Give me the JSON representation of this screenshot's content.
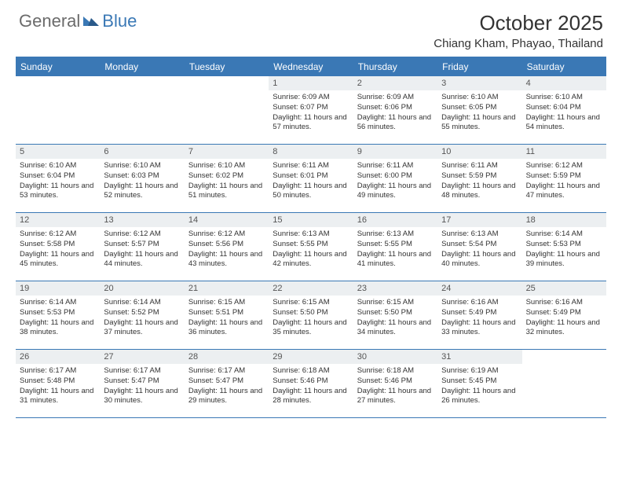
{
  "logo": {
    "general": "General",
    "blue": "Blue"
  },
  "title": {
    "month": "October 2025",
    "location": "Chiang Kham, Phayao, Thailand"
  },
  "colors": {
    "header_bg": "#3a78b5",
    "date_bg": "#eceff1",
    "text": "#333333",
    "logo_gray": "#6b6b6b"
  },
  "day_names": [
    "Sunday",
    "Monday",
    "Tuesday",
    "Wednesday",
    "Thursday",
    "Friday",
    "Saturday"
  ],
  "weeks": [
    [
      {
        "date": "",
        "sunrise": "",
        "sunset": "",
        "daylight": ""
      },
      {
        "date": "",
        "sunrise": "",
        "sunset": "",
        "daylight": ""
      },
      {
        "date": "",
        "sunrise": "",
        "sunset": "",
        "daylight": ""
      },
      {
        "date": "1",
        "sunrise": "Sunrise: 6:09 AM",
        "sunset": "Sunset: 6:07 PM",
        "daylight": "Daylight: 11 hours and 57 minutes."
      },
      {
        "date": "2",
        "sunrise": "Sunrise: 6:09 AM",
        "sunset": "Sunset: 6:06 PM",
        "daylight": "Daylight: 11 hours and 56 minutes."
      },
      {
        "date": "3",
        "sunrise": "Sunrise: 6:10 AM",
        "sunset": "Sunset: 6:05 PM",
        "daylight": "Daylight: 11 hours and 55 minutes."
      },
      {
        "date": "4",
        "sunrise": "Sunrise: 6:10 AM",
        "sunset": "Sunset: 6:04 PM",
        "daylight": "Daylight: 11 hours and 54 minutes."
      }
    ],
    [
      {
        "date": "5",
        "sunrise": "Sunrise: 6:10 AM",
        "sunset": "Sunset: 6:04 PM",
        "daylight": "Daylight: 11 hours and 53 minutes."
      },
      {
        "date": "6",
        "sunrise": "Sunrise: 6:10 AM",
        "sunset": "Sunset: 6:03 PM",
        "daylight": "Daylight: 11 hours and 52 minutes."
      },
      {
        "date": "7",
        "sunrise": "Sunrise: 6:10 AM",
        "sunset": "Sunset: 6:02 PM",
        "daylight": "Daylight: 11 hours and 51 minutes."
      },
      {
        "date": "8",
        "sunrise": "Sunrise: 6:11 AM",
        "sunset": "Sunset: 6:01 PM",
        "daylight": "Daylight: 11 hours and 50 minutes."
      },
      {
        "date": "9",
        "sunrise": "Sunrise: 6:11 AM",
        "sunset": "Sunset: 6:00 PM",
        "daylight": "Daylight: 11 hours and 49 minutes."
      },
      {
        "date": "10",
        "sunrise": "Sunrise: 6:11 AM",
        "sunset": "Sunset: 5:59 PM",
        "daylight": "Daylight: 11 hours and 48 minutes."
      },
      {
        "date": "11",
        "sunrise": "Sunrise: 6:12 AM",
        "sunset": "Sunset: 5:59 PM",
        "daylight": "Daylight: 11 hours and 47 minutes."
      }
    ],
    [
      {
        "date": "12",
        "sunrise": "Sunrise: 6:12 AM",
        "sunset": "Sunset: 5:58 PM",
        "daylight": "Daylight: 11 hours and 45 minutes."
      },
      {
        "date": "13",
        "sunrise": "Sunrise: 6:12 AM",
        "sunset": "Sunset: 5:57 PM",
        "daylight": "Daylight: 11 hours and 44 minutes."
      },
      {
        "date": "14",
        "sunrise": "Sunrise: 6:12 AM",
        "sunset": "Sunset: 5:56 PM",
        "daylight": "Daylight: 11 hours and 43 minutes."
      },
      {
        "date": "15",
        "sunrise": "Sunrise: 6:13 AM",
        "sunset": "Sunset: 5:55 PM",
        "daylight": "Daylight: 11 hours and 42 minutes."
      },
      {
        "date": "16",
        "sunrise": "Sunrise: 6:13 AM",
        "sunset": "Sunset: 5:55 PM",
        "daylight": "Daylight: 11 hours and 41 minutes."
      },
      {
        "date": "17",
        "sunrise": "Sunrise: 6:13 AM",
        "sunset": "Sunset: 5:54 PM",
        "daylight": "Daylight: 11 hours and 40 minutes."
      },
      {
        "date": "18",
        "sunrise": "Sunrise: 6:14 AM",
        "sunset": "Sunset: 5:53 PM",
        "daylight": "Daylight: 11 hours and 39 minutes."
      }
    ],
    [
      {
        "date": "19",
        "sunrise": "Sunrise: 6:14 AM",
        "sunset": "Sunset: 5:53 PM",
        "daylight": "Daylight: 11 hours and 38 minutes."
      },
      {
        "date": "20",
        "sunrise": "Sunrise: 6:14 AM",
        "sunset": "Sunset: 5:52 PM",
        "daylight": "Daylight: 11 hours and 37 minutes."
      },
      {
        "date": "21",
        "sunrise": "Sunrise: 6:15 AM",
        "sunset": "Sunset: 5:51 PM",
        "daylight": "Daylight: 11 hours and 36 minutes."
      },
      {
        "date": "22",
        "sunrise": "Sunrise: 6:15 AM",
        "sunset": "Sunset: 5:50 PM",
        "daylight": "Daylight: 11 hours and 35 minutes."
      },
      {
        "date": "23",
        "sunrise": "Sunrise: 6:15 AM",
        "sunset": "Sunset: 5:50 PM",
        "daylight": "Daylight: 11 hours and 34 minutes."
      },
      {
        "date": "24",
        "sunrise": "Sunrise: 6:16 AM",
        "sunset": "Sunset: 5:49 PM",
        "daylight": "Daylight: 11 hours and 33 minutes."
      },
      {
        "date": "25",
        "sunrise": "Sunrise: 6:16 AM",
        "sunset": "Sunset: 5:49 PM",
        "daylight": "Daylight: 11 hours and 32 minutes."
      }
    ],
    [
      {
        "date": "26",
        "sunrise": "Sunrise: 6:17 AM",
        "sunset": "Sunset: 5:48 PM",
        "daylight": "Daylight: 11 hours and 31 minutes."
      },
      {
        "date": "27",
        "sunrise": "Sunrise: 6:17 AM",
        "sunset": "Sunset: 5:47 PM",
        "daylight": "Daylight: 11 hours and 30 minutes."
      },
      {
        "date": "28",
        "sunrise": "Sunrise: 6:17 AM",
        "sunset": "Sunset: 5:47 PM",
        "daylight": "Daylight: 11 hours and 29 minutes."
      },
      {
        "date": "29",
        "sunrise": "Sunrise: 6:18 AM",
        "sunset": "Sunset: 5:46 PM",
        "daylight": "Daylight: 11 hours and 28 minutes."
      },
      {
        "date": "30",
        "sunrise": "Sunrise: 6:18 AM",
        "sunset": "Sunset: 5:46 PM",
        "daylight": "Daylight: 11 hours and 27 minutes."
      },
      {
        "date": "31",
        "sunrise": "Sunrise: 6:19 AM",
        "sunset": "Sunset: 5:45 PM",
        "daylight": "Daylight: 11 hours and 26 minutes."
      },
      {
        "date": "",
        "sunrise": "",
        "sunset": "",
        "daylight": ""
      }
    ]
  ]
}
